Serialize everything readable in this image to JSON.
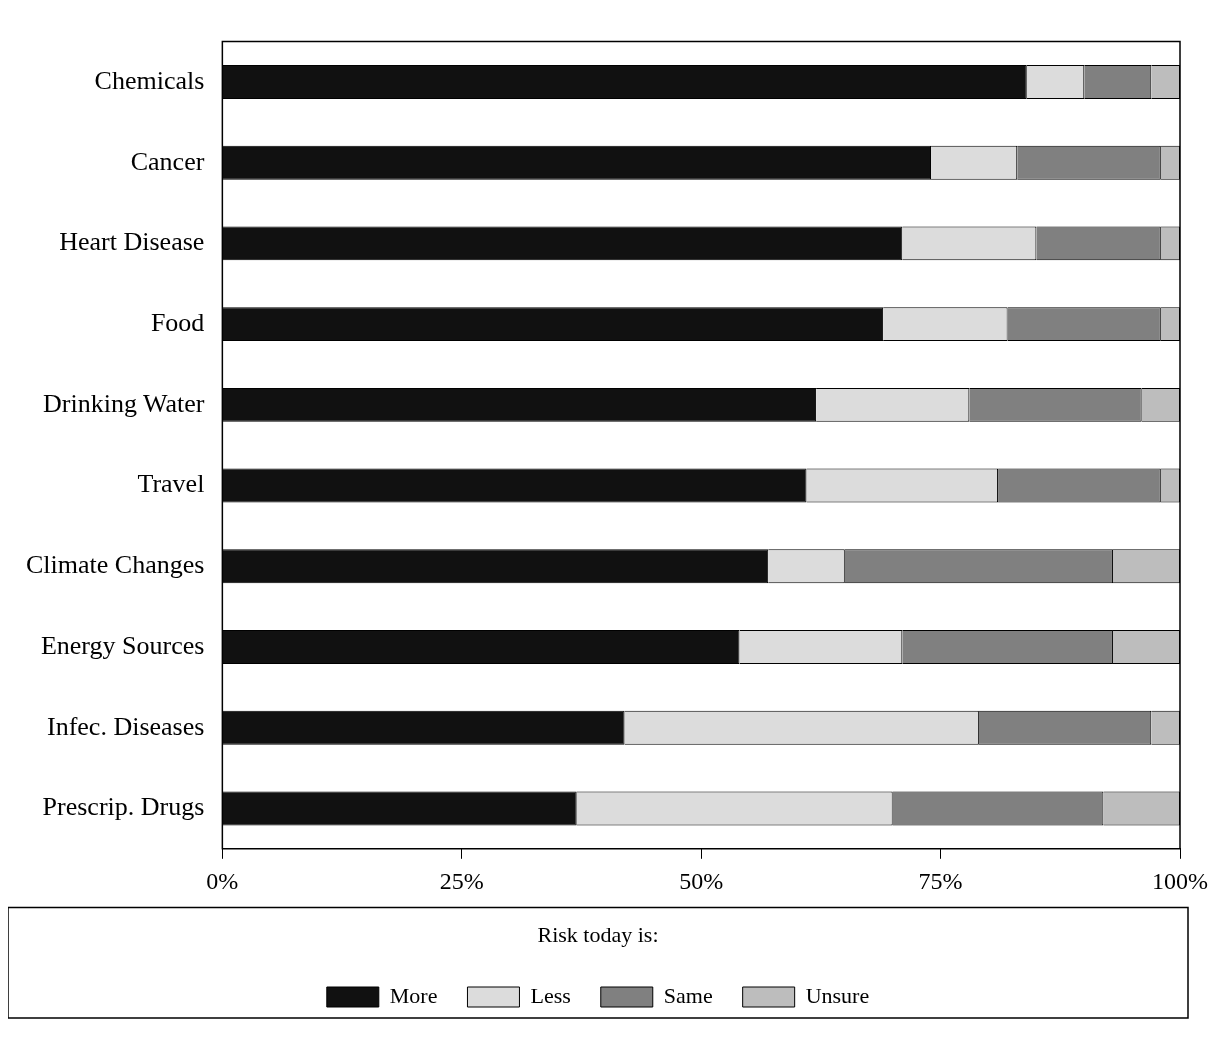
{
  "chart_data": {
    "type": "bar",
    "orientation": "horizontal",
    "stacked": true,
    "categories": [
      "Chemicals",
      "Cancer",
      "Heart Disease",
      "Food",
      "Drinking Water",
      "Travel",
      "Climate Changes",
      "Energy Sources",
      "Infec. Diseases",
      "Prescrip. Drugs"
    ],
    "series": [
      {
        "name": "More",
        "color": "#111111",
        "values": [
          84,
          74,
          71,
          69,
          62,
          61,
          57,
          54,
          42,
          37
        ]
      },
      {
        "name": "Less",
        "color": "#dcdcdc",
        "values": [
          6,
          9,
          14,
          13,
          16,
          20,
          8,
          17,
          37,
          33
        ]
      },
      {
        "name": "Same",
        "color": "#808080",
        "values": [
          7,
          15,
          13,
          16,
          18,
          17,
          28,
          22,
          18,
          22
        ]
      },
      {
        "name": "Unsure",
        "color": "#bdbdbd",
        "values": [
          3,
          2,
          2,
          2,
          4,
          2,
          7,
          7,
          3,
          8
        ]
      }
    ],
    "xlim": [
      0,
      100
    ],
    "xticks": [
      {
        "value": 0,
        "label": "0%"
      },
      {
        "value": 25,
        "label": "25%"
      },
      {
        "value": 50,
        "label": "50%"
      },
      {
        "value": 75,
        "label": "75%"
      },
      {
        "value": 100,
        "label": "100%"
      }
    ],
    "legend_title": "Risk today is:",
    "legend": "bottom",
    "grid": false
  }
}
